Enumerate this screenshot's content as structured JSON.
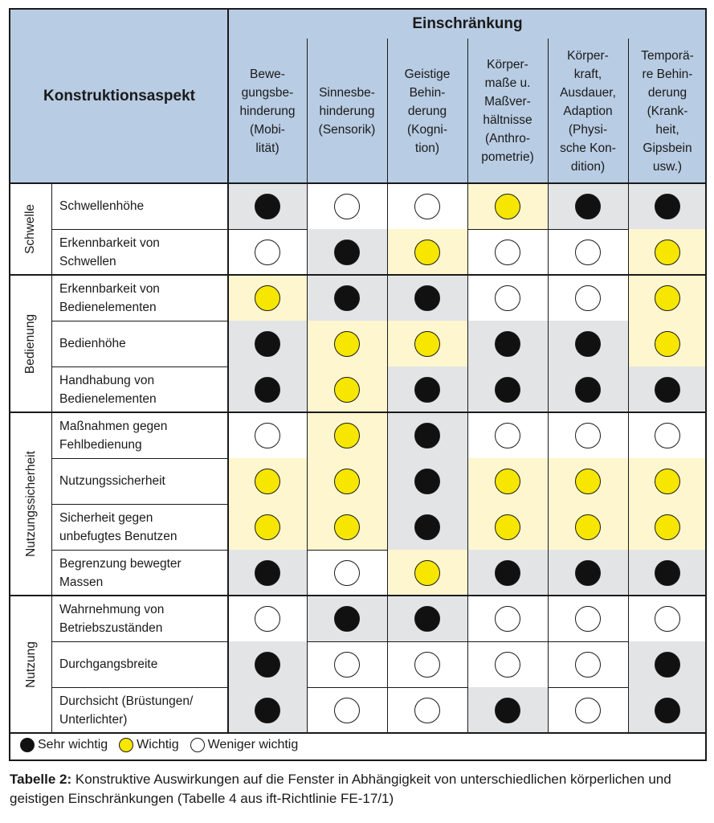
{
  "header": {
    "aspect_label": "Konstruktionsaspekt",
    "group_label": "Einschränkung",
    "columns": [
      "Bewe-\ngungsbe-\nhinderung\n(Mobi-\nlität)",
      "Sinnesbe-\nhinderung\n(Sensorik)",
      "Geistige\nBehin-\nderung\n(Kogni-\ntion)",
      "Körper-\nmaße u.\nMaßver-\nhältnisse\n(Anthro-\npometrie)",
      "Körper-\nkraft,\nAusdauer,\nAdaption\n(Physi-\nsche Kon-\ndition)",
      "Temporä-\nre Behin-\nderung\n(Krank-\nheit,\nGipsbein\nusw.)"
    ]
  },
  "groups": [
    {
      "label": "Schwelle",
      "rows": [
        {
          "label": "Schwellenhöhe",
          "marks": [
            "black",
            "white",
            "white",
            "yellow",
            "black",
            "black"
          ]
        },
        {
          "label": "Erkennbarkeit von\nSchwellen",
          "marks": [
            "white",
            "black",
            "yellow",
            "white",
            "white",
            "yellow"
          ]
        }
      ]
    },
    {
      "label": "Bedienung",
      "rows": [
        {
          "label": "Erkennbarkeit von\nBedienelementen",
          "marks": [
            "yellow",
            "black",
            "black",
            "white",
            "white",
            "yellow"
          ]
        },
        {
          "label": "Bedienhöhe",
          "marks": [
            "black",
            "yellow",
            "yellow",
            "black",
            "black",
            "yellow"
          ]
        },
        {
          "label": "Handhabung von\nBedienelementen",
          "marks": [
            "black",
            "yellow",
            "black",
            "black",
            "black",
            "black"
          ]
        }
      ]
    },
    {
      "label": "Nutzungssicherheit",
      "rows": [
        {
          "label": "Maßnahmen gegen\nFehlbedienung",
          "marks": [
            "white",
            "yellow",
            "black",
            "white",
            "white",
            "white"
          ]
        },
        {
          "label": "Nutzungssicherheit",
          "marks": [
            "yellow",
            "yellow",
            "black",
            "yellow",
            "yellow",
            "yellow"
          ]
        },
        {
          "label": "Sicherheit gegen\nunbefugtes Benutzen",
          "marks": [
            "yellow",
            "yellow",
            "black",
            "yellow",
            "yellow",
            "yellow"
          ]
        },
        {
          "label": "Begrenzung bewegter\nMassen",
          "marks": [
            "black",
            "white",
            "yellow",
            "black",
            "black",
            "black"
          ]
        }
      ]
    },
    {
      "label": "Nutzung",
      "rows": [
        {
          "label": "Wahrnehmung von\nBetriebszuständen",
          "marks": [
            "white",
            "black",
            "black",
            "white",
            "white",
            "white"
          ]
        },
        {
          "label": "Durchgangsbreite",
          "marks": [
            "black",
            "white",
            "white",
            "white",
            "white",
            "black"
          ]
        },
        {
          "label": "Durchsicht (Brüstungen/\nUnterlichter)",
          "marks": [
            "black",
            "white",
            "white",
            "black",
            "white",
            "black"
          ]
        }
      ]
    }
  ],
  "legend": [
    {
      "mark": "black",
      "label": "Sehr wichtig"
    },
    {
      "mark": "yellow",
      "label": "Wichtig"
    },
    {
      "mark": "white",
      "label": "Weniger wichtig"
    }
  ],
  "caption": {
    "bold": "Tabelle 2:",
    "text": " Konstruktive Auswirkungen auf die Fenster in Abhängigkeit von unterschiedlichen körperlichen und geistigen Einschränkungen (Tabelle 4 aus ift-Richtlinie FE-17/1)"
  },
  "colors": {
    "header_bg": "#b8cce3",
    "cell_yellow_bg": "#fdf6cf",
    "cell_grey_bg": "#e3e4e6",
    "dot_yellow": "#f6e600",
    "dot_black": "#111111"
  }
}
